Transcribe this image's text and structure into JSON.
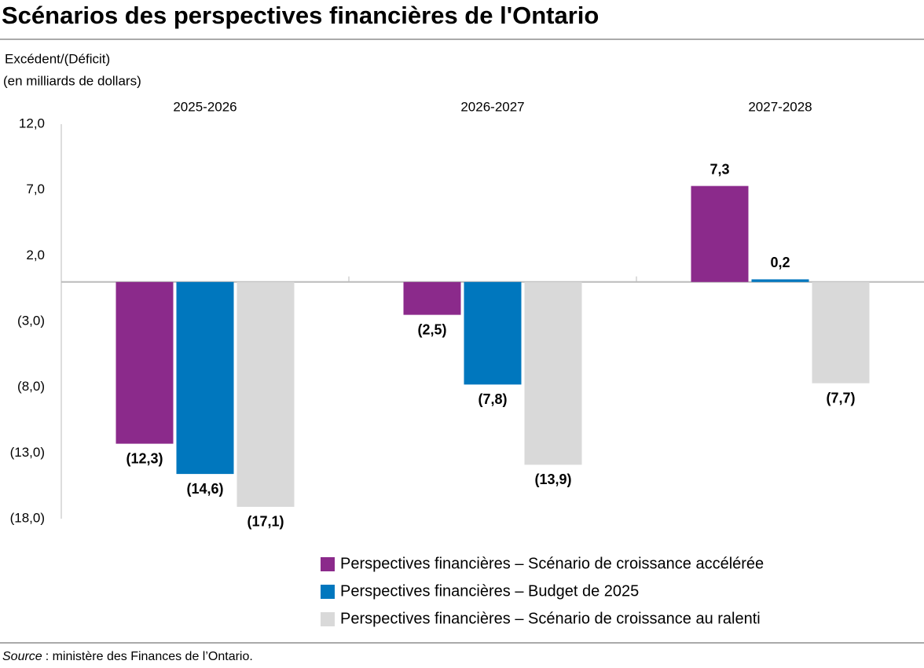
{
  "chart_data": {
    "type": "bar",
    "title": "Scénarios des perspectives financières de l'Ontario",
    "y_label": [
      "Excédent/(Déficit)",
      "(en milliards de dollars)"
    ],
    "categories": [
      "2025-2026",
      "2026-2027",
      "2027-2028"
    ],
    "series": [
      {
        "name": "Perspectives financières – Scénario de croissance accélérée",
        "color": "#8b2a8b",
        "values": [
          -12.3,
          -2.5,
          7.3
        ],
        "value_labels": [
          "(12,3)",
          "(2,5)",
          "7,3"
        ]
      },
      {
        "name": "Perspectives financières – Budget de 2025",
        "color": "#0077be",
        "values": [
          -14.6,
          -7.8,
          0.2
        ],
        "value_labels": [
          "(14,6)",
          "(7,8)",
          "0,2"
        ]
      },
      {
        "name": "Perspectives financières – Scénario de croissance au ralenti",
        "color": "#d9d9d9",
        "values": [
          -17.1,
          -13.9,
          -7.7
        ],
        "value_labels": [
          "(17,1)",
          "(13,9)",
          "(7,7)"
        ]
      }
    ],
    "ylim": [
      -18,
      12
    ],
    "yticks": [
      {
        "value": 12,
        "label": "12,0"
      },
      {
        "value": 7,
        "label": "7,0"
      },
      {
        "value": 2,
        "label": "2,0"
      },
      {
        "value": -3,
        "label": "(3,0)"
      },
      {
        "value": -8,
        "label": "(8,0)"
      },
      {
        "value": -13,
        "label": "(13,0)"
      },
      {
        "value": -18,
        "label": "(18,0)"
      }
    ],
    "grid": false,
    "source": {
      "label": "Source",
      "text": ": ministère des Finances de l’Ontario."
    }
  }
}
